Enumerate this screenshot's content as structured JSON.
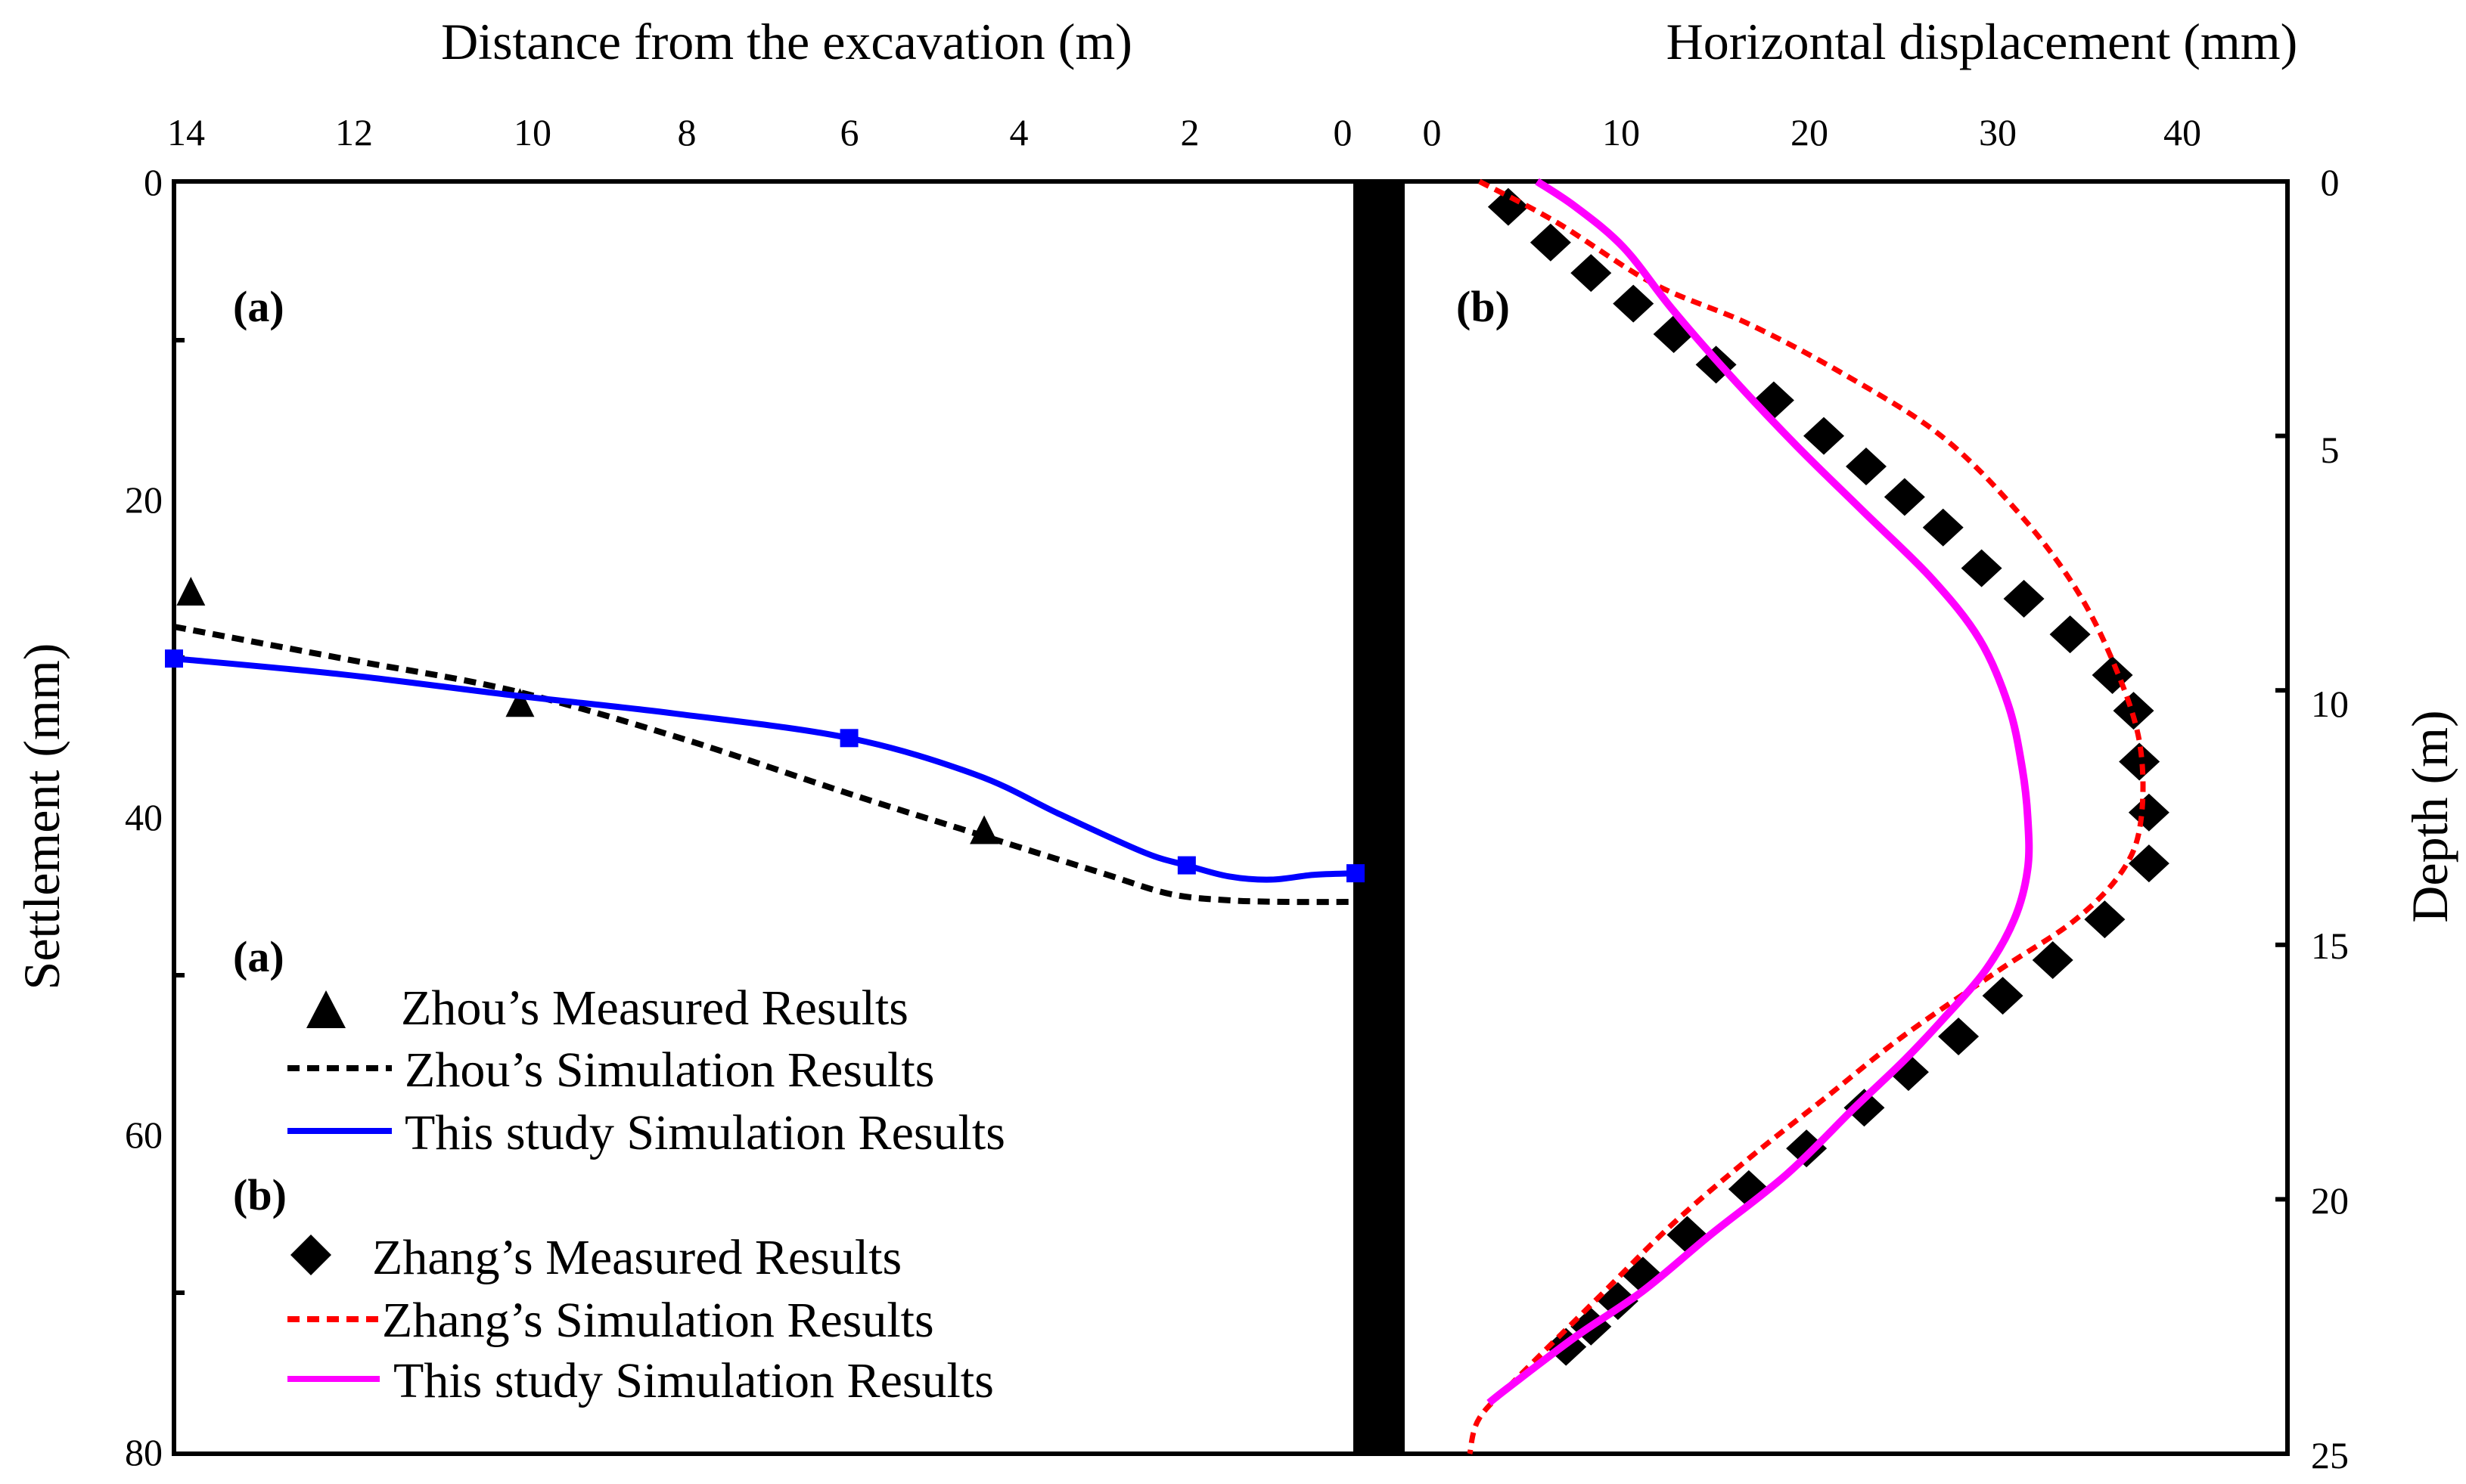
{
  "chart_data": [
    {
      "panel": "a",
      "type": "line",
      "panel_label": "(a)",
      "xlabel": "Distance from the excavation (m)",
      "ylabel": "Settlement  (mm)",
      "x_ticks": [
        "14",
        "12",
        "10",
        "8",
        "6",
        "4",
        "2",
        "0"
      ],
      "y_ticks": [
        "0",
        "20",
        "40",
        "60",
        "80"
      ],
      "xlim": [
        14,
        0
      ],
      "ylim": [
        0,
        80
      ],
      "x_axis_position": "top",
      "y_axis_inverted": true,
      "series": [
        {
          "name": "Zhou's Measured Results",
          "style": "markers",
          "marker": "triangle",
          "color": "#000000",
          "x": [
            13.8,
            9.9,
            4.4
          ],
          "y": [
            26,
            33,
            41
          ]
        },
        {
          "name": "Zhou's Simulation Results",
          "style": "dashed",
          "color": "#000000",
          "x": [
            14,
            12,
            10,
            8,
            6,
            4.5,
            3,
            2.2,
            1.5,
            0.8,
            0
          ],
          "y": [
            28,
            30,
            32,
            35,
            38.5,
            41,
            43.5,
            44.8,
            45.2,
            45.3,
            45.3
          ]
        },
        {
          "name": "This study Simulation Results",
          "style": "solid",
          "color": "#0000ff",
          "marker": "square",
          "marker_x": [
            14,
            6,
            2,
            0
          ],
          "marker_y": [
            30,
            35,
            43,
            43.5
          ],
          "x": [
            14,
            12,
            10,
            8,
            6,
            4.5,
            3.5,
            2.5,
            2,
            1.5,
            1,
            0.5,
            0
          ],
          "y": [
            30,
            31,
            32.3,
            33.5,
            35,
            37.3,
            39.8,
            42.2,
            43,
            43.7,
            43.9,
            43.6,
            43.5
          ]
        }
      ]
    },
    {
      "panel": "b",
      "type": "line",
      "panel_label": "(b)",
      "xlabel": "Horizontal displacement (mm)",
      "ylabel": "Depth  (m)",
      "x_ticks": [
        "0",
        "10",
        "20",
        "30",
        "40"
      ],
      "y_ticks": [
        "0",
        "5",
        "10",
        "15",
        "20",
        "25"
      ],
      "xlim": [
        0,
        46
      ],
      "ylim": [
        0,
        25
      ],
      "x_axis_position": "top",
      "y_axis_position": "right",
      "y_axis_inverted": true,
      "series": [
        {
          "name": "Zhang's Measured Results",
          "style": "markers",
          "marker": "diamond",
          "color": "#000000",
          "x": [
            5.5,
            7.7,
            9.8,
            12.0,
            14.1,
            16.3,
            19.3,
            21.9,
            24.1,
            26.1,
            28.1,
            30.1,
            32.3,
            34.7,
            36.9,
            38.0,
            38.3,
            38.8,
            38.8,
            36.5,
            33.8,
            31.2,
            28.9,
            26.3,
            24.0,
            21.0,
            18.0,
            14.8,
            12.5,
            11.2,
            9.8,
            8.5
          ],
          "y": [
            0.5,
            1.2,
            1.8,
            2.4,
            3.0,
            3.6,
            4.3,
            5.0,
            5.6,
            6.2,
            6.8,
            7.6,
            8.2,
            8.9,
            9.7,
            10.4,
            11.4,
            12.4,
            13.4,
            14.5,
            15.3,
            16.0,
            16.8,
            17.5,
            18.2,
            19.0,
            19.8,
            20.7,
            21.5,
            22.0,
            22.5,
            22.9
          ]
        },
        {
          "name": "Zhang's Simulation Results",
          "style": "dashed",
          "color": "#ff0000",
          "x": [
            4,
            8,
            13,
            18,
            23,
            28,
            32,
            35,
            37,
            38.3,
            38.4,
            37.5,
            35,
            31,
            26,
            22,
            18,
            14,
            10,
            6,
            4,
            3.5
          ],
          "y": [
            0,
            0.8,
            2.0,
            2.8,
            3.8,
            5.0,
            6.5,
            8.0,
            9.5,
            11.0,
            12.5,
            13.5,
            14.5,
            15.5,
            16.8,
            18.0,
            19.2,
            20.5,
            22.0,
            23.5,
            24.3,
            25.0
          ]
        },
        {
          "name": "This study Simulation Results",
          "style": "solid",
          "color": "#ff00ff",
          "x": [
            7,
            9,
            11.5,
            14,
            17,
            20.5,
            24,
            27.5,
            30,
            31.5,
            32.2,
            32.5,
            32.5,
            31.8,
            30.3,
            28,
            26,
            23.5,
            20,
            16,
            12.5,
            9,
            5.5,
            4.5
          ],
          "y": [
            0,
            0.5,
            1.3,
            2.5,
            3.8,
            5.2,
            6.5,
            7.8,
            9.0,
            10.3,
            11.5,
            12.5,
            13.5,
            14.5,
            15.5,
            16.5,
            17.3,
            18.2,
            19.5,
            20.7,
            21.8,
            22.7,
            23.7,
            24.0
          ]
        }
      ]
    }
  ],
  "legend": {
    "group_a_label": "(a)",
    "group_b_label": "(b)",
    "items": [
      "Zhou’s Measured Results",
      "Zhou’s Simulation Results",
      "This study Simulation Results",
      "Zhang’s Measured Results",
      "Zhang’s Simulation Results",
      "This study Simulation Results"
    ]
  },
  "colors": {
    "axis": "#000000",
    "blue": "#0000ff",
    "red": "#ff0000",
    "magenta": "#ff00ff"
  }
}
